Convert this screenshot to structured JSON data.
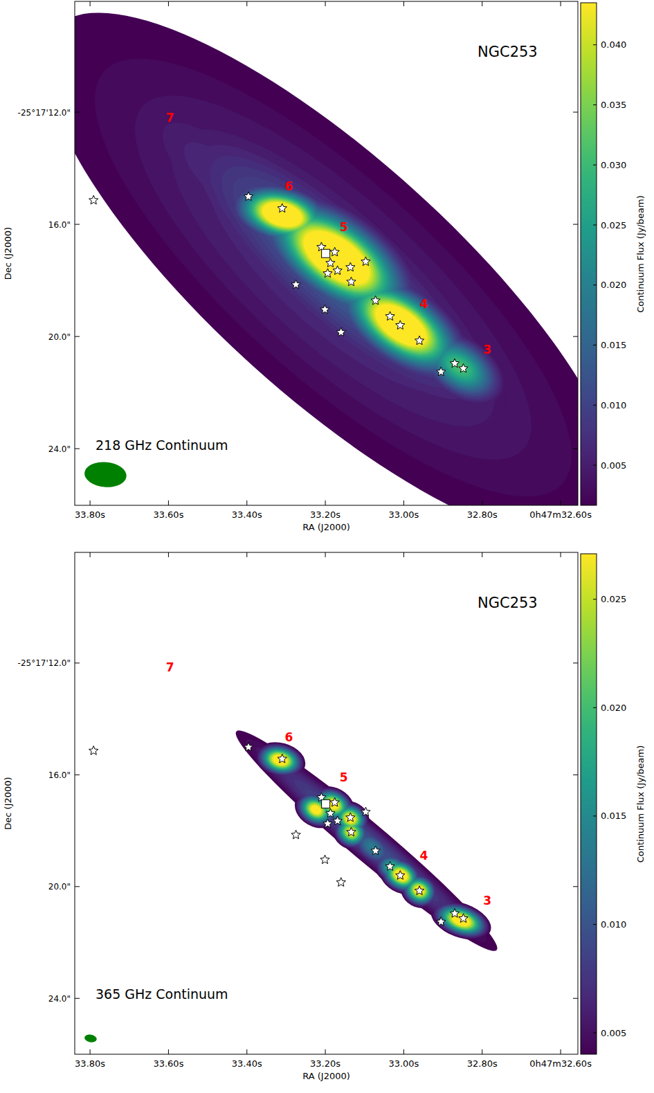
{
  "chart_data": [
    {
      "type": "image",
      "title": "NGC253",
      "annotation": "218 GHz Continuum",
      "x_label": "RA (J2000)",
      "y_label": "Dec (J2000)",
      "xlim": [
        33.839,
        32.556
      ],
      "xticks": [
        {
          "value": 33.8,
          "label": "33.80s"
        },
        {
          "value": 33.6,
          "label": "33.60s"
        },
        {
          "value": 33.4,
          "label": "33.40s"
        },
        {
          "value": 33.2,
          "label": "33.20s"
        },
        {
          "value": 33.0,
          "label": "33.00s"
        },
        {
          "value": 32.8,
          "label": "32.80s"
        },
        {
          "value": 32.6,
          "label": "0h47m32.60s"
        }
      ],
      "ylim": [
        26.02,
        8.05
      ],
      "yticks": [
        {
          "value": 12,
          "label": "-25°17'12.0\""
        },
        {
          "value": 16,
          "label": "16.0\""
        },
        {
          "value": 20,
          "label": "20.0\""
        },
        {
          "value": 24,
          "label": "24.0\""
        }
      ],
      "colorbar": {
        "label": "Continuum Flux (Jy/beam)",
        "range": [
          0.00166,
          0.0435
        ],
        "ticks": [
          0.005,
          {
            "value": 0.01,
            "label": "0.010"
          },
          0.015,
          {
            "value": 0.02,
            "label": "0.020"
          },
          0.025,
          {
            "value": 0.03,
            "label": "0.030"
          },
          0.035,
          {
            "value": 0.04,
            "label": "0.040"
          }
        ]
      },
      "components": {
        "ra": [
          33.18,
          33.45,
          33.17,
          33.31,
          33.171,
          33.007,
          32.857
        ],
        "dec": [
          17.9,
          14.5,
          17.7,
          15.65,
          17.19,
          19.6,
          21.09
        ],
        "peak": [
          0.008,
          0.007,
          0.016,
          0.06,
          0.065,
          0.06,
          0.032
        ],
        "major": [
          7.5,
          3.5,
          4.6,
          0.9,
          1.5,
          1.3,
          0.9
        ],
        "minor": [
          2.4,
          1.2,
          1.3,
          0.5,
          0.75,
          0.65,
          0.55
        ],
        "pa": [
          48,
          48,
          48,
          75,
          55,
          55,
          55
        ]
      },
      "stars": {
        "ra": [
          33.791,
          33.396,
          33.31,
          33.21,
          33.176,
          33.187,
          33.169,
          33.194,
          33.136,
          33.097,
          33.134,
          33.275,
          33.201,
          33.072,
          33.035,
          33.16,
          33.009,
          32.96,
          32.87,
          32.848,
          32.905
        ],
        "dec": [
          15.14,
          15.01,
          15.43,
          16.81,
          16.99,
          17.38,
          17.65,
          17.75,
          17.53,
          17.33,
          18.05,
          18.15,
          19.04,
          18.72,
          19.28,
          19.85,
          19.6,
          20.15,
          20.96,
          21.14,
          21.26
        ]
      },
      "square": {
        "ra": [
          33.199
        ],
        "dec": [
          17.04
        ]
      },
      "regions": {
        "labels": [
          "7",
          "6",
          "5",
          "4",
          "3"
        ],
        "ra": [
          33.596,
          33.293,
          33.153,
          32.949,
          32.787
        ],
        "dec": [
          12.2,
          14.64,
          16.1,
          18.84,
          20.47
        ]
      },
      "beam": {
        "major": 1.5,
        "minor": 0.89,
        "pa": 85
      }
    },
    {
      "type": "image",
      "title": "NGC253",
      "annotation": "365 GHz Continuum",
      "x_label": "RA (J2000)",
      "y_label": "Dec (J2000)",
      "xlim": [
        33.839,
        32.556
      ],
      "xticks": [
        {
          "value": 33.8,
          "label": "33.80s"
        },
        {
          "value": 33.6,
          "label": "33.60s"
        },
        {
          "value": 33.4,
          "label": "33.40s"
        },
        {
          "value": 33.2,
          "label": "33.20s"
        },
        {
          "value": 33.0,
          "label": "33.00s"
        },
        {
          "value": 32.8,
          "label": "32.80s"
        },
        {
          "value": 32.6,
          "label": "0h47m32.60s"
        }
      ],
      "ylim": [
        26.0,
        8.04
      ],
      "yticks": [
        {
          "value": 12,
          "label": "-25°17'12.0\""
        },
        {
          "value": 16,
          "label": "16.0\""
        },
        {
          "value": 20,
          "label": "20.0\""
        },
        {
          "value": 24,
          "label": "24.0\""
        }
      ],
      "colorbar": {
        "label": "Continuum Flux (Jy/beam)",
        "range": [
          0.00401,
          0.0271
        ],
        "ticks": [
          0.005,
          {
            "value": 0.01,
            "label": "0.010"
          },
          0.015,
          {
            "value": 0.02,
            "label": "0.020"
          },
          0.025
        ]
      },
      "components": {
        "ra": [
          33.095,
          33.08,
          33.315,
          33.224,
          33.18,
          33.136,
          33.134,
          33.028,
          33.007,
          32.96,
          32.854
        ],
        "dec": [
          18.36,
          18.6,
          15.47,
          17.25,
          17.07,
          17.57,
          18.06,
          19.35,
          19.6,
          20.14,
          21.21
        ],
        "peak": [
          0.01,
          0.014,
          0.032,
          0.03,
          0.03,
          0.03,
          0.028,
          0.02,
          0.032,
          0.03,
          0.032
        ],
        "major": [
          4.5,
          0.6,
          0.45,
          0.4,
          0.4,
          0.35,
          0.35,
          0.4,
          0.4,
          0.35,
          0.55
        ],
        "minor": [
          0.5,
          0.35,
          0.3,
          0.3,
          0.3,
          0.3,
          0.3,
          0.3,
          0.3,
          0.3,
          0.3
        ],
        "pa": [
          50,
          50,
          75,
          60,
          60,
          60,
          60,
          60,
          60,
          60,
          70
        ]
      },
      "stars": {
        "ra": [
          33.791,
          33.396,
          33.31,
          33.21,
          33.176,
          33.187,
          33.169,
          33.194,
          33.136,
          33.097,
          33.134,
          33.275,
          33.201,
          33.072,
          33.035,
          33.16,
          33.009,
          32.96,
          32.87,
          32.848,
          32.905
        ],
        "dec": [
          15.14,
          15.01,
          15.43,
          16.81,
          16.99,
          17.38,
          17.65,
          17.75,
          17.53,
          17.33,
          18.05,
          18.15,
          19.04,
          18.72,
          19.28,
          19.85,
          19.6,
          20.15,
          20.96,
          21.14,
          21.26
        ]
      },
      "square": {
        "ra": [
          33.199
        ],
        "dec": [
          17.04
        ]
      },
      "regions": {
        "labels": [
          "7",
          "6",
          "5",
          "4",
          "3"
        ],
        "ra": [
          33.596,
          33.293,
          33.153,
          32.949,
          32.787
        ],
        "dec": [
          12.15,
          14.65,
          16.1,
          18.9,
          20.5
        ]
      },
      "beam": {
        "major": 0.44,
        "minor": 0.27,
        "pa": 80
      }
    }
  ]
}
